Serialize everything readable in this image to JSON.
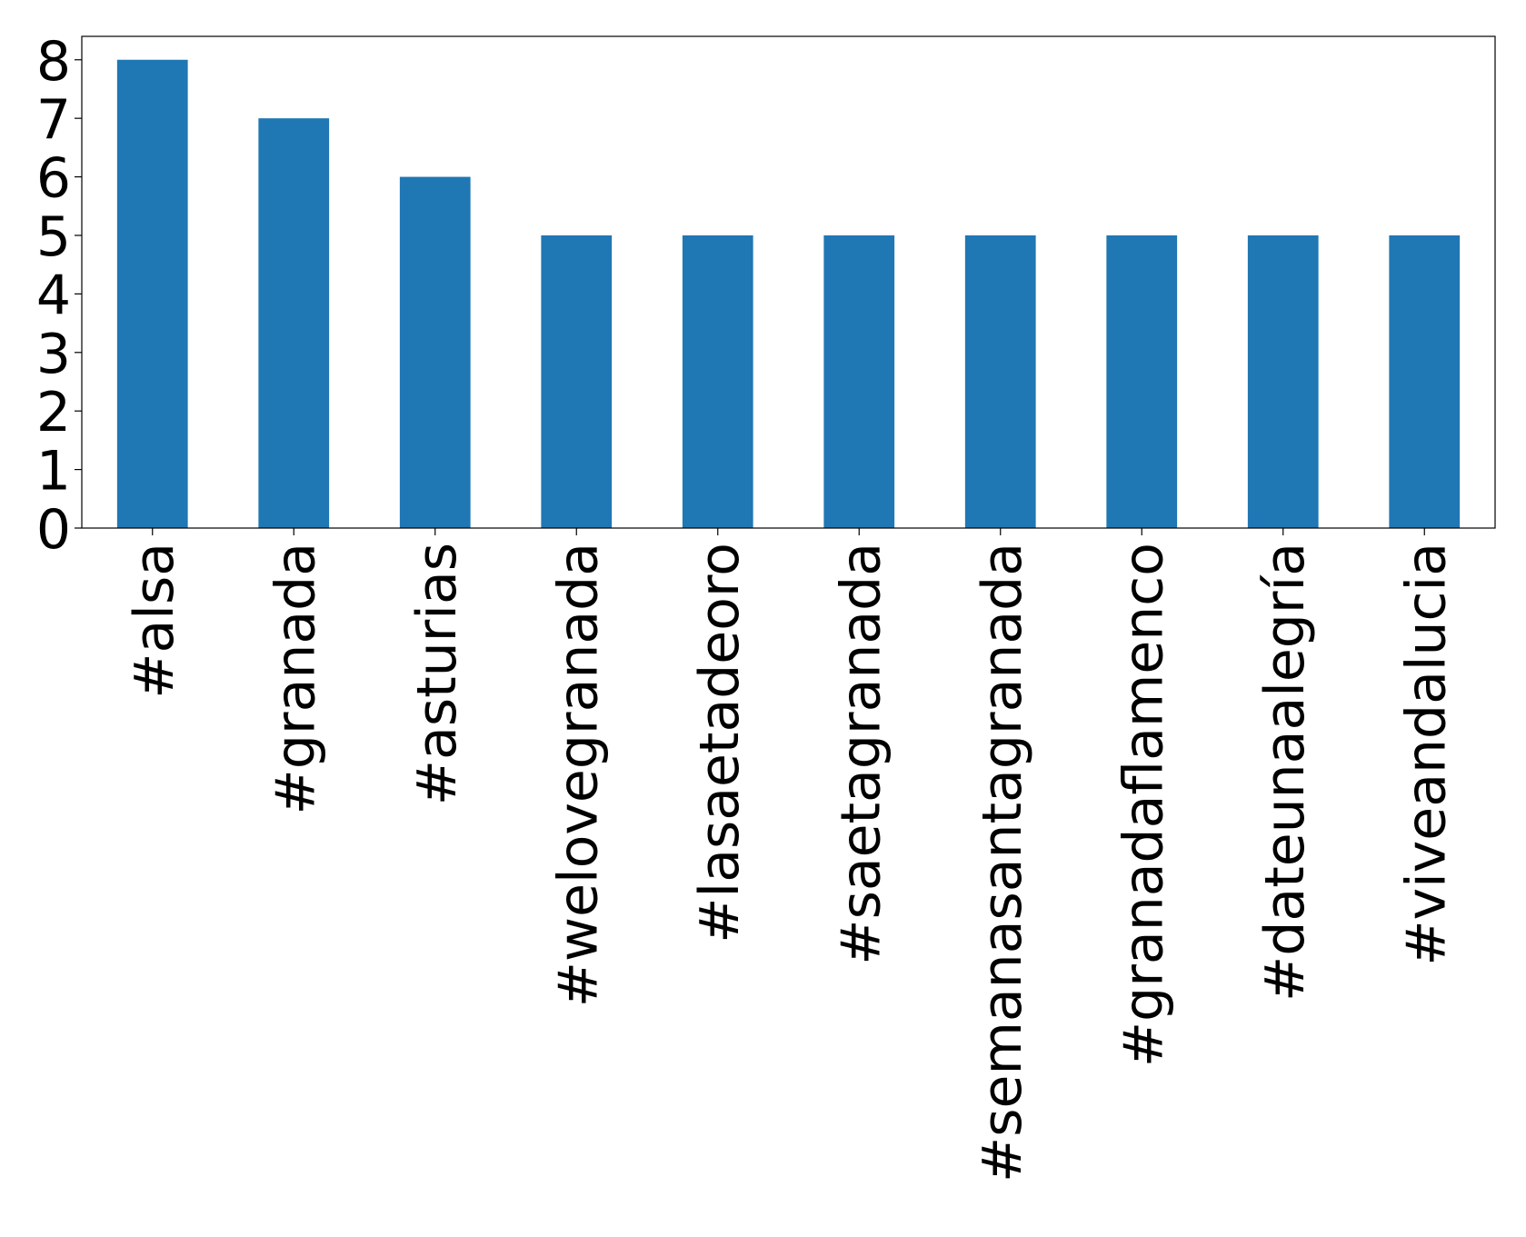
{
  "chart_data": {
    "type": "bar",
    "categories": [
      "#alsa",
      "#granada",
      "#asturias",
      "#welovegranada",
      "#lasaetadeoro",
      "#saetagranada",
      "#semanasantagranada",
      "#granadaflamenco",
      "#dateunaalegría",
      "#viveandalucia"
    ],
    "values": [
      8,
      7,
      6,
      5,
      5,
      5,
      5,
      5,
      5,
      5
    ],
    "color": "#1f77b4",
    "ylim": [
      0,
      8.4
    ],
    "yticks": [
      0,
      1,
      2,
      3,
      4,
      5,
      6,
      7,
      8
    ],
    "grid": false
  }
}
